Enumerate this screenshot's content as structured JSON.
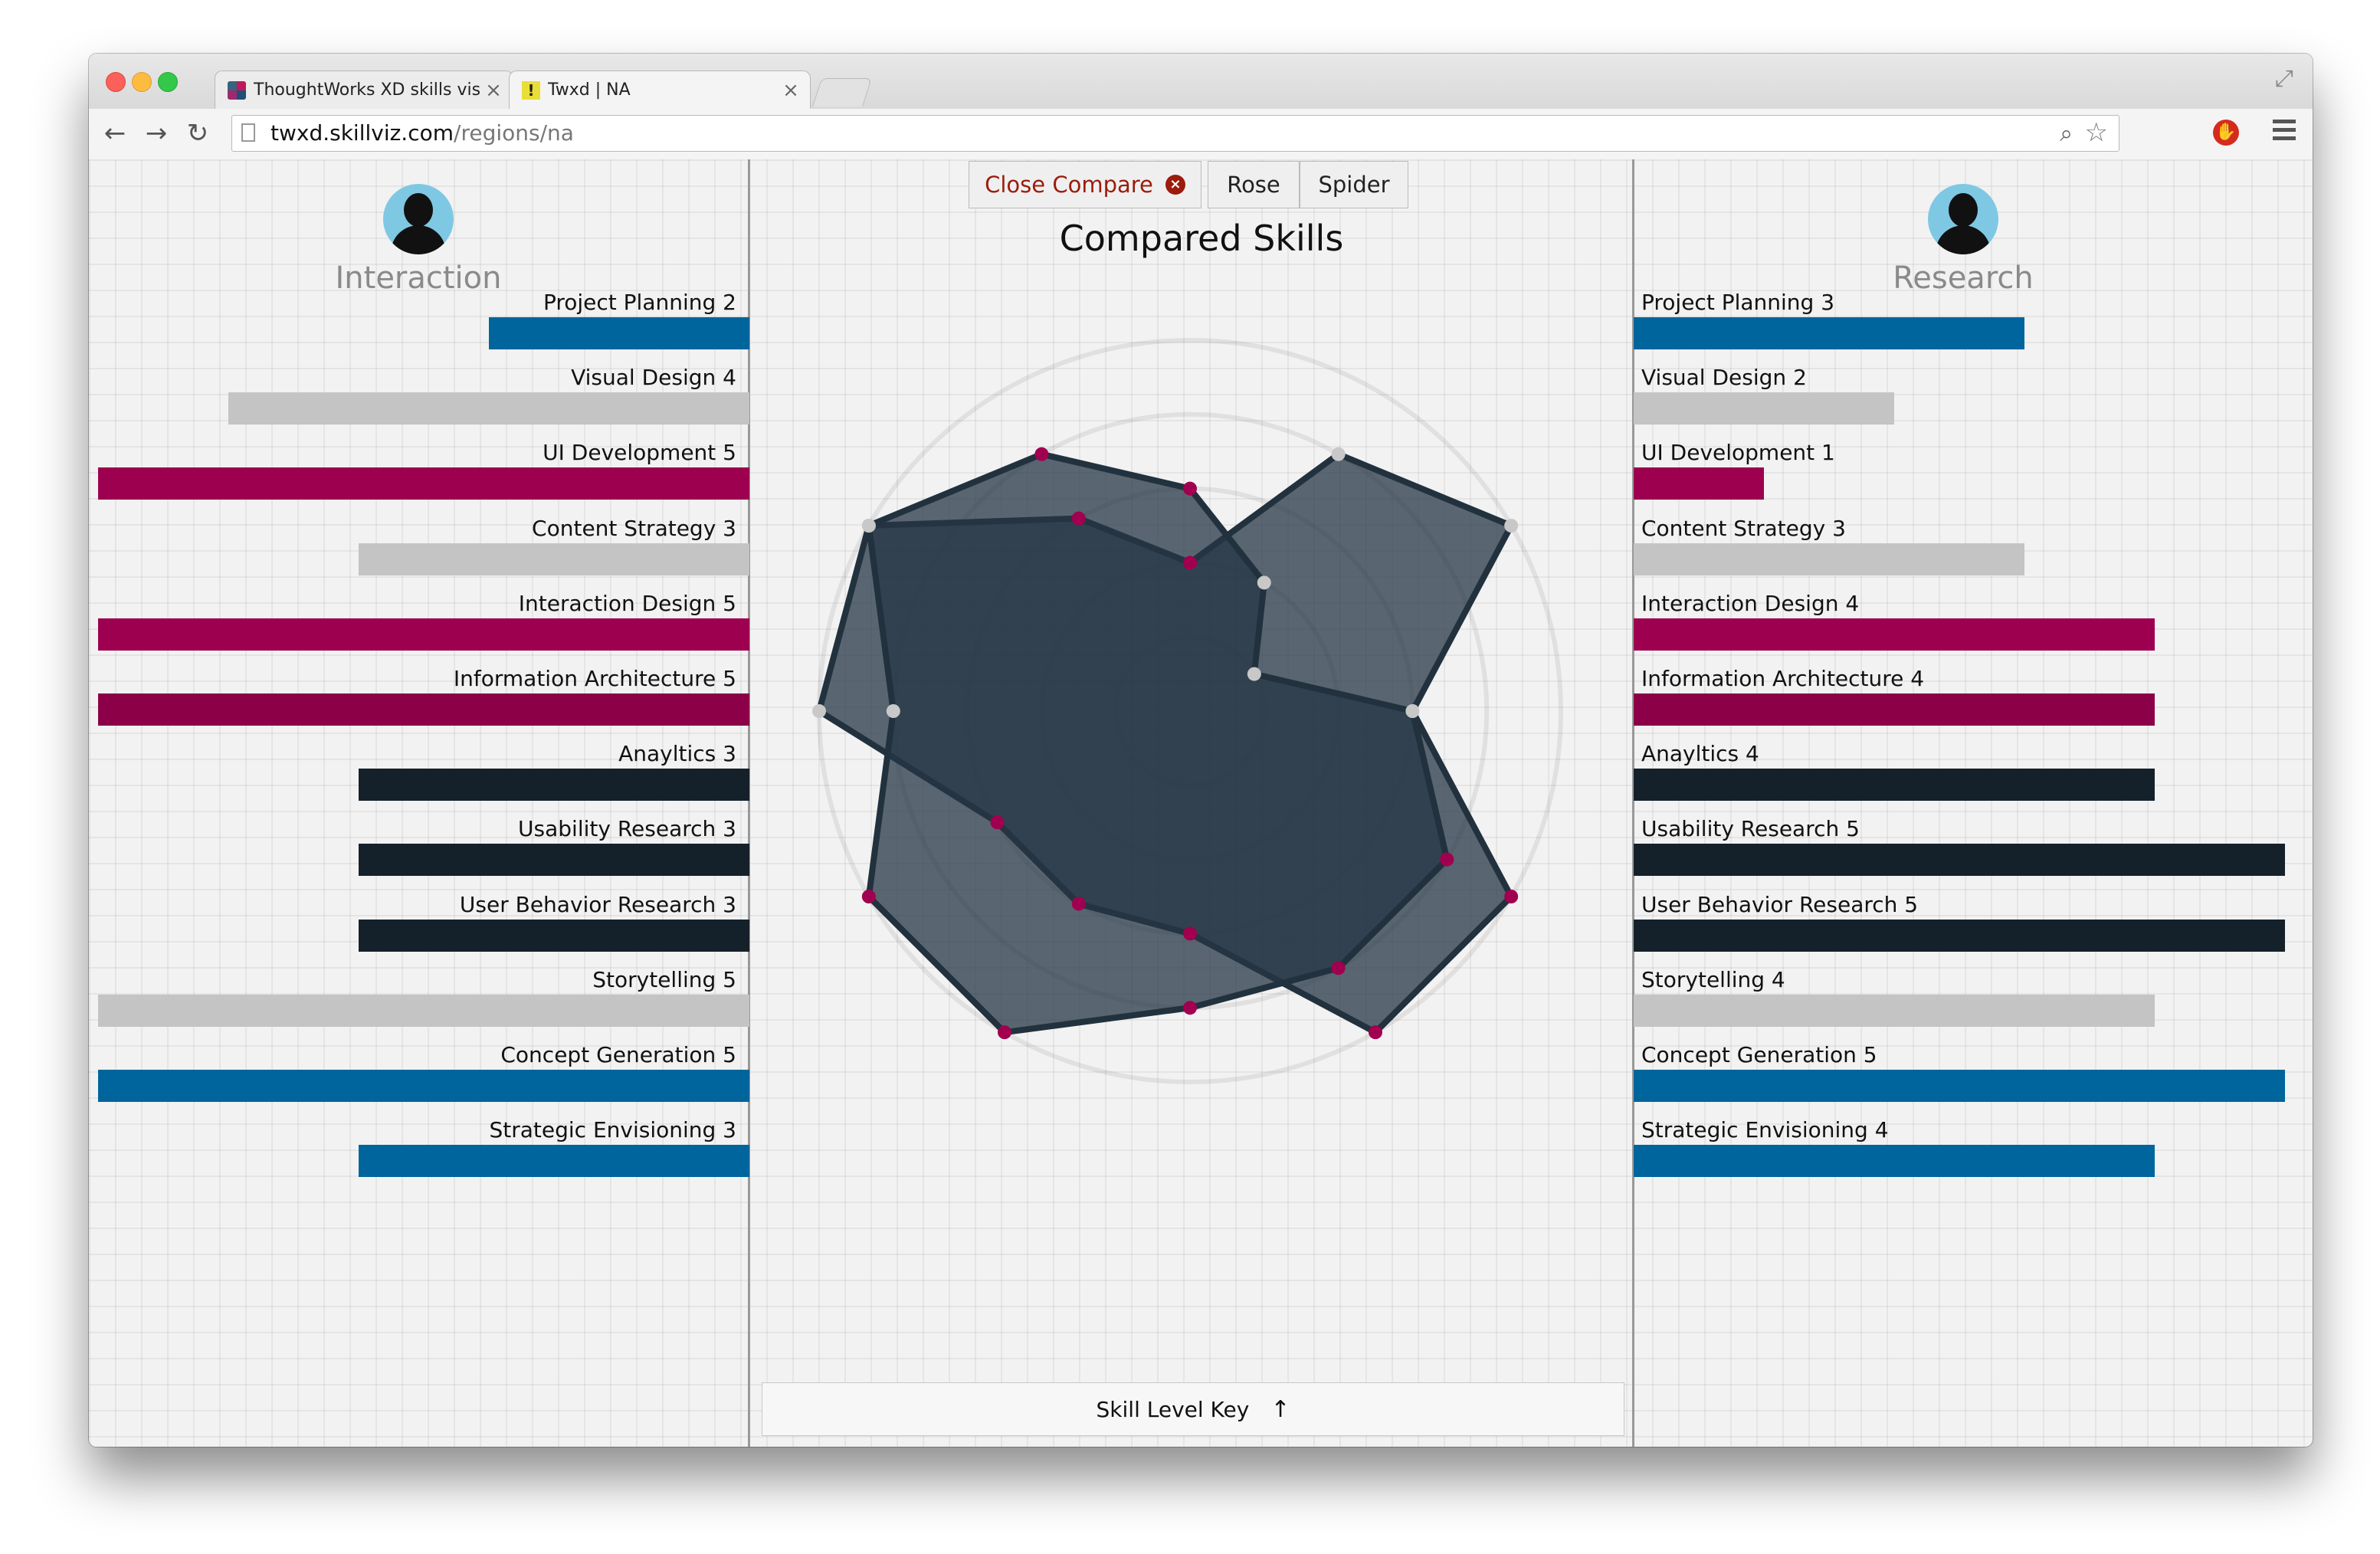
{
  "browser": {
    "tabs": [
      {
        "title": "ThoughtWorks XD skills vis",
        "close": "×",
        "active": false
      },
      {
        "title": "Twxd | NA",
        "close": "×",
        "active": true
      }
    ],
    "url_host": "twxd.skillviz.com",
    "url_path": "/regions/na"
  },
  "buttons": {
    "close_compare": "Close Compare",
    "close_icon": "×",
    "rose": "Rose",
    "spider": "Spider"
  },
  "chart_title": "Compared Skills",
  "skill_key_label": "Skill Level Key",
  "skill_key_icon": "↑",
  "colors": {
    "blue": "#00659c",
    "gray": "#c4c4c4",
    "magenta": "#9e0050",
    "dark_magenta": "#8c0048",
    "navy": "#14212b"
  },
  "left_person": {
    "name": "Interaction",
    "skills": [
      {
        "label": "Project Planning 2",
        "level": 2,
        "color": "#00659c"
      },
      {
        "label": "Visual Design 4",
        "level": 4,
        "color": "#c4c4c4"
      },
      {
        "label": "UI Development 5",
        "level": 5,
        "color": "#9e0050"
      },
      {
        "label": "Content Strategy 3",
        "level": 3,
        "color": "#c4c4c4"
      },
      {
        "label": "Interaction Design 5",
        "level": 5,
        "color": "#9e0050"
      },
      {
        "label": "Information Architecture 5",
        "level": 5,
        "color": "#8c0048"
      },
      {
        "label": "Anayltics 3",
        "level": 3,
        "color": "#14212b"
      },
      {
        "label": "Usability Research 3",
        "level": 3,
        "color": "#14212b"
      },
      {
        "label": "User Behavior Research 3",
        "level": 3,
        "color": "#14212b"
      },
      {
        "label": "Storytelling 5",
        "level": 5,
        "color": "#c4c4c4"
      },
      {
        "label": "Concept Generation 5",
        "level": 5,
        "color": "#00659c"
      },
      {
        "label": "Strategic Envisioning 3",
        "level": 3,
        "color": "#00659c"
      }
    ]
  },
  "right_person": {
    "name": "Research",
    "skills": [
      {
        "label": "Project Planning 3",
        "level": 3,
        "color": "#00659c"
      },
      {
        "label": "Visual Design 2",
        "level": 2,
        "color": "#c4c4c4"
      },
      {
        "label": "UI Development 1",
        "level": 1,
        "color": "#9e0050"
      },
      {
        "label": "Content Strategy 3",
        "level": 3,
        "color": "#c4c4c4"
      },
      {
        "label": "Interaction Design 4",
        "level": 4,
        "color": "#9e0050"
      },
      {
        "label": "Information Architecture 4",
        "level": 4,
        "color": "#8c0048"
      },
      {
        "label": "Anayltics 4",
        "level": 4,
        "color": "#14212b"
      },
      {
        "label": "Usability Research 5",
        "level": 5,
        "color": "#14212b"
      },
      {
        "label": "User Behavior Research 5",
        "level": 5,
        "color": "#14212b"
      },
      {
        "label": "Storytelling 4",
        "level": 4,
        "color": "#c4c4c4"
      },
      {
        "label": "Concept Generation 5",
        "level": 5,
        "color": "#00659c"
      },
      {
        "label": "Strategic Envisioning 4",
        "level": 4,
        "color": "#00659c"
      }
    ]
  },
  "radar": {
    "max_level": 5,
    "polygon_a": [
      2,
      4,
      5,
      3,
      5,
      5,
      3,
      3,
      3,
      5,
      5,
      3
    ],
    "polygon_b": [
      3,
      2,
      1,
      3,
      4,
      4,
      4,
      5,
      5,
      4,
      5,
      4
    ]
  }
}
